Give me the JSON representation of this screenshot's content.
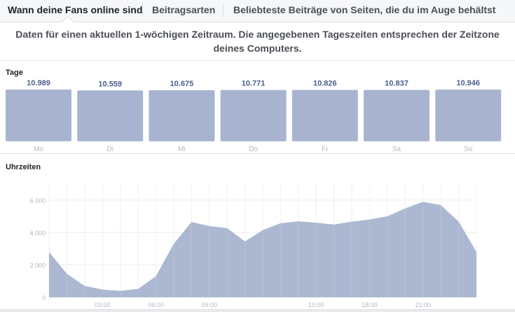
{
  "tabs": [
    {
      "label": "Wann deine Fans online sind",
      "active": true
    },
    {
      "label": "Beitragsarten",
      "active": false
    },
    {
      "label": "Beliebteste Beiträge von Seiten, die du im Auge behältst",
      "active": false
    }
  ],
  "notice": "Daten für einen aktuellen 1-wöchigen Zeitraum. Die angegebenen Tageszeiten entsprechen der Zeitzone deines Computers.",
  "colors": {
    "bar_fill": "#a8b4cf",
    "area_fill": "#a8b4cf",
    "value_label": "#4a5e8c",
    "axis_label": "#b4b8bf",
    "grid": "#eceef1"
  },
  "chart_data": [
    {
      "type": "bar",
      "title": "Tage",
      "categories": [
        "Mo",
        "Di",
        "Mi",
        "Do",
        "Fr",
        "Sa",
        "So"
      ],
      "values": [
        10989,
        10559,
        10675,
        10771,
        10826,
        10837,
        10946
      ],
      "value_labels": [
        "10.989",
        "10.559",
        "10.675",
        "10.771",
        "10.826",
        "10.837",
        "10.946"
      ],
      "xlabel": "",
      "ylabel": ""
    },
    {
      "type": "area",
      "title": "Uhrzeiten",
      "x": [
        0,
        1,
        2,
        3,
        4,
        5,
        6,
        7,
        8,
        9,
        10,
        11,
        12,
        13,
        14,
        15,
        16,
        17,
        18,
        19,
        20,
        21,
        22,
        23,
        24
      ],
      "values": [
        2800,
        1450,
        700,
        480,
        400,
        520,
        1300,
        3300,
        4650,
        4400,
        4270,
        3450,
        4150,
        4570,
        4690,
        4600,
        4490,
        4670,
        4800,
        5000,
        5490,
        5890,
        5690,
        4670,
        2800
      ],
      "xlim": [
        0,
        24
      ],
      "ylim": [
        0,
        7000
      ],
      "yticks": [
        0,
        2000,
        4000,
        6000
      ],
      "ytick_labels": [
        "0",
        "2.000",
        "4.000",
        "6.000"
      ],
      "xticks": [
        3,
        6,
        9,
        15,
        18,
        21
      ],
      "xtick_labels": [
        "03:00",
        "06:00",
        "09:00",
        "15:00",
        "18:00",
        "21:00"
      ],
      "grid": true,
      "xlabel": "",
      "ylabel": ""
    }
  ]
}
